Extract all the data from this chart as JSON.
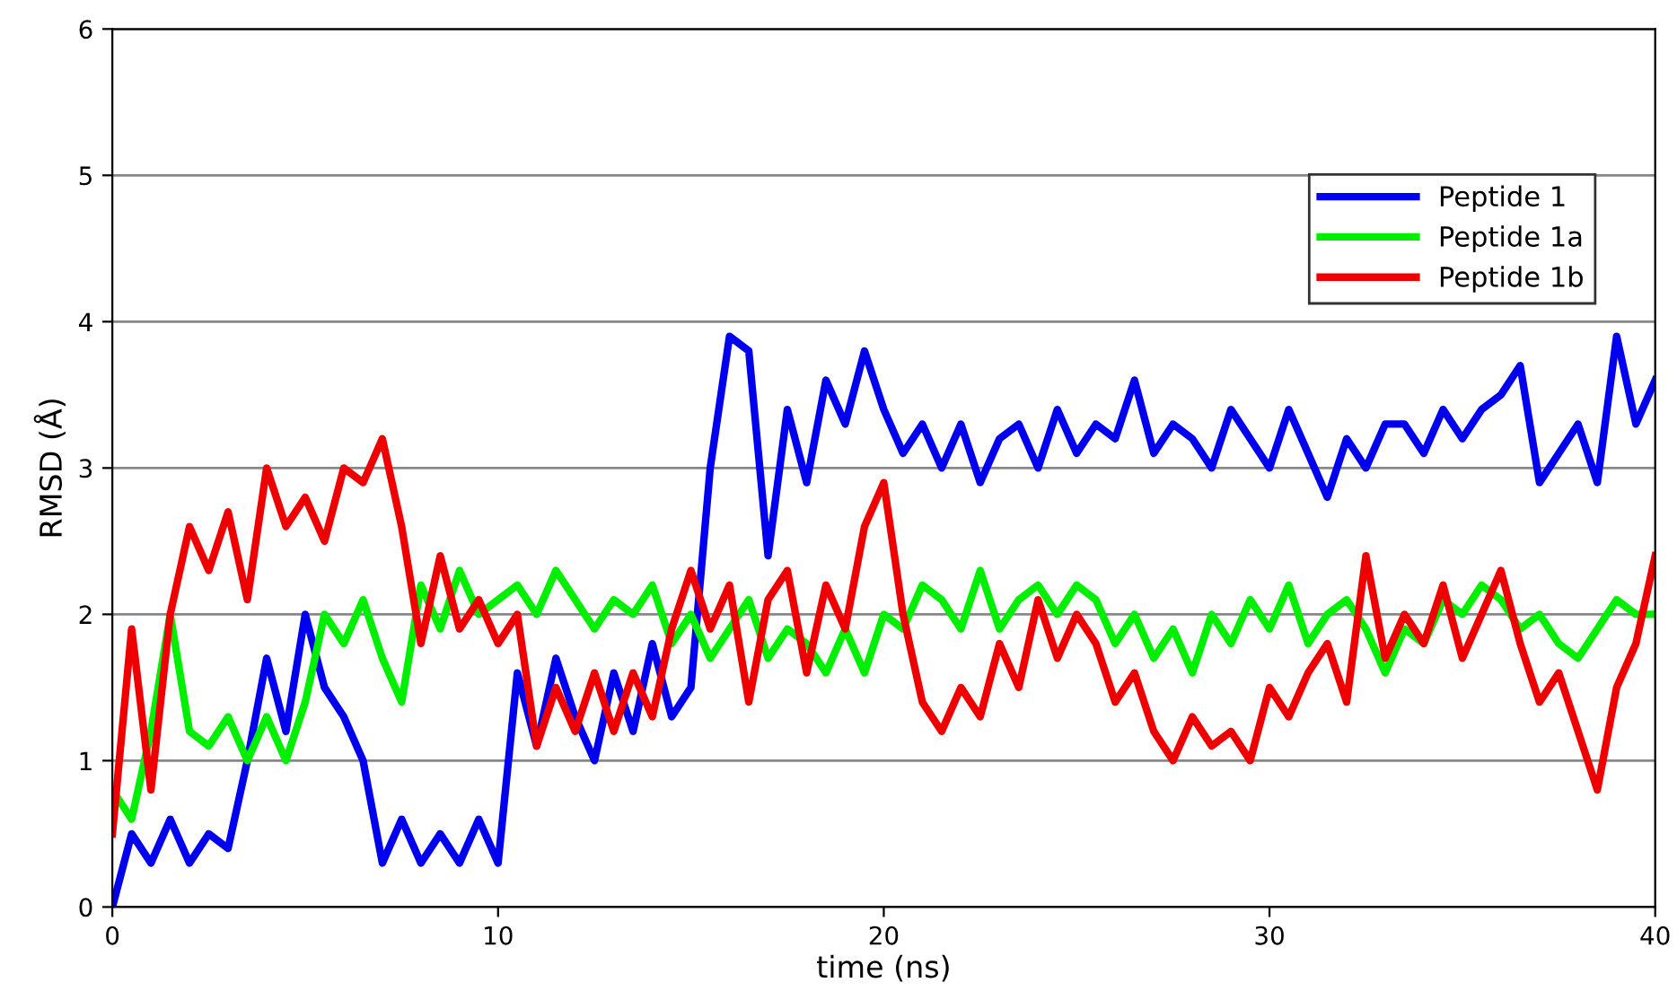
{
  "chart_data": {
    "type": "line",
    "xlabel": "time (ns)",
    "ylabel": "RMSD (Å)",
    "xlim": [
      0,
      40
    ],
    "ylim": [
      0,
      6
    ],
    "xticks": [
      0,
      10,
      20,
      30,
      40
    ],
    "yticks": [
      0,
      1,
      2,
      3,
      4,
      5,
      6
    ],
    "grid": "y",
    "legend": "top right",
    "marker": "none",
    "line_style": "solid",
    "x": [
      0,
      0.5,
      1,
      1.5,
      2,
      2.5,
      3,
      3.5,
      4,
      4.5,
      5,
      5.5,
      6,
      6.5,
      7,
      7.5,
      8,
      8.5,
      9,
      9.5,
      10,
      10.5,
      11,
      11.5,
      12,
      12.5,
      13,
      13.5,
      14,
      14.5,
      15,
      15.5,
      16,
      16.5,
      17,
      17.5,
      18,
      18.5,
      19,
      19.5,
      20,
      20.5,
      21,
      21.5,
      22,
      22.5,
      23,
      23.5,
      24,
      24.5,
      25,
      25.5,
      26,
      26.5,
      27,
      27.5,
      28,
      28.5,
      29,
      29.5,
      30,
      30.5,
      31,
      31.5,
      32,
      32.5,
      33,
      33.5,
      34,
      34.5,
      35,
      35.5,
      36,
      36.5,
      37,
      37.5,
      38,
      38.5,
      39,
      39.5,
      40
    ],
    "series": [
      {
        "name": "Peptide 1",
        "color": "#0000ee",
        "values": [
          0.0,
          0.5,
          0.3,
          0.6,
          0.3,
          0.5,
          0.4,
          1.0,
          1.7,
          1.2,
          2.0,
          1.5,
          1.3,
          1.0,
          0.3,
          0.6,
          0.3,
          0.5,
          0.3,
          0.6,
          0.3,
          1.6,
          1.1,
          1.7,
          1.3,
          1.0,
          1.6,
          1.2,
          1.8,
          1.3,
          1.5,
          3.0,
          3.9,
          3.8,
          2.4,
          3.4,
          2.9,
          3.6,
          3.3,
          3.8,
          3.4,
          3.1,
          3.3,
          3.0,
          3.3,
          2.9,
          3.2,
          3.3,
          3.0,
          3.4,
          3.1,
          3.3,
          3.2,
          3.6,
          3.1,
          3.3,
          3.2,
          3.0,
          3.4,
          3.2,
          3.0,
          3.4,
          3.1,
          2.8,
          3.2,
          3.0,
          3.3,
          3.3,
          3.1,
          3.4,
          3.2,
          3.4,
          3.5,
          3.7,
          2.9,
          3.1,
          3.3,
          2.9,
          3.9,
          3.3,
          3.6
        ]
      },
      {
        "name": "Peptide 1a",
        "color": "#00ee00",
        "values": [
          0.8,
          0.6,
          1.2,
          2.0,
          1.2,
          1.1,
          1.3,
          1.0,
          1.3,
          1.0,
          1.4,
          2.0,
          1.8,
          2.1,
          1.7,
          1.4,
          2.2,
          1.9,
          2.3,
          2.0,
          2.1,
          2.2,
          2.0,
          2.3,
          2.1,
          1.9,
          2.1,
          2.0,
          2.2,
          1.8,
          2.0,
          1.7,
          1.9,
          2.1,
          1.7,
          1.9,
          1.8,
          1.6,
          1.9,
          1.6,
          2.0,
          1.9,
          2.2,
          2.1,
          1.9,
          2.3,
          1.9,
          2.1,
          2.2,
          2.0,
          2.2,
          2.1,
          1.8,
          2.0,
          1.7,
          1.9,
          1.6,
          2.0,
          1.8,
          2.1,
          1.9,
          2.2,
          1.8,
          2.0,
          2.1,
          1.9,
          1.6,
          1.9,
          1.8,
          2.1,
          2.0,
          2.2,
          2.1,
          1.9,
          2.0,
          1.8,
          1.7,
          1.9,
          2.1,
          2.0,
          2.0
        ]
      },
      {
        "name": "Peptide 1b",
        "color": "#ee0000",
        "values": [
          0.5,
          1.9,
          0.8,
          2.0,
          2.6,
          2.3,
          2.7,
          2.1,
          3.0,
          2.6,
          2.8,
          2.5,
          3.0,
          2.9,
          3.2,
          2.6,
          1.8,
          2.4,
          1.9,
          2.1,
          1.8,
          2.0,
          1.1,
          1.5,
          1.2,
          1.6,
          1.2,
          1.6,
          1.3,
          1.9,
          2.3,
          1.9,
          2.2,
          1.4,
          2.1,
          2.3,
          1.6,
          2.2,
          1.9,
          2.6,
          2.9,
          2.0,
          1.4,
          1.2,
          1.5,
          1.3,
          1.8,
          1.5,
          2.1,
          1.7,
          2.0,
          1.8,
          1.4,
          1.6,
          1.2,
          1.0,
          1.3,
          1.1,
          1.2,
          1.0,
          1.5,
          1.3,
          1.6,
          1.8,
          1.4,
          2.4,
          1.7,
          2.0,
          1.8,
          2.2,
          1.7,
          2.0,
          2.3,
          1.8,
          1.4,
          1.6,
          1.2,
          0.8,
          1.5,
          1.8,
          2.4
        ]
      }
    ]
  }
}
